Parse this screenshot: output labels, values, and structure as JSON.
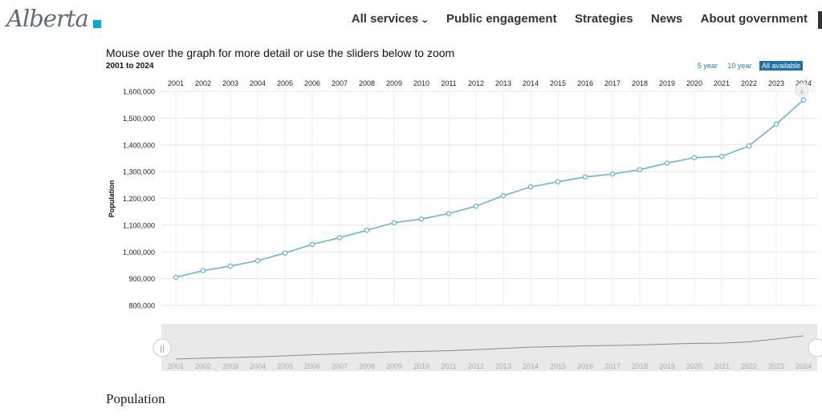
{
  "header": {
    "logo_text": "Alberta",
    "nav": [
      {
        "label": "All services",
        "has_dropdown": true
      },
      {
        "label": "Public engagement",
        "has_dropdown": false
      },
      {
        "label": "Strategies",
        "has_dropdown": false
      },
      {
        "label": "News",
        "has_dropdown": false
      },
      {
        "label": "About government",
        "has_dropdown": false
      }
    ]
  },
  "chart_header": {
    "instruction": "Mouse over the graph for more detail or use the sliders below to zoom",
    "range_text": "2001 to 2024",
    "range_buttons": [
      "5 year",
      "10 year",
      "All available"
    ],
    "active_range": "All available"
  },
  "chart_data": {
    "type": "line",
    "x": [
      "2001",
      "2002",
      "2003",
      "2004",
      "2005",
      "2006",
      "2007",
      "2008",
      "2009",
      "2010",
      "2011",
      "2012",
      "2013",
      "2014",
      "2015",
      "2016",
      "2017",
      "2018",
      "2019",
      "2020",
      "2021",
      "2022",
      "2023",
      "2024"
    ],
    "series": [
      {
        "values": [
          905000,
          930000,
          947000,
          967000,
          996000,
          1028000,
          1053000,
          1081000,
          1109000,
          1123000,
          1143000,
          1171000,
          1210000,
          1243000,
          1262000,
          1280000,
          1291000,
          1307000,
          1332000,
          1352000,
          1357000,
          1396000,
          1478000,
          1568000
        ],
        "color": "#6ab4d8"
      }
    ],
    "ylabel": "Population",
    "ylim": [
      800000,
      1600000
    ],
    "yticks": [
      "800,000",
      "900,000",
      "1,000,000",
      "1,100,000",
      "1,200,000",
      "1,300,000",
      "1,400,000",
      "1,500,000",
      "1,600,000"
    ],
    "x_axis_position": "top",
    "grid": true,
    "navigator": true
  },
  "section": {
    "heading": "Population"
  },
  "colors": {
    "line": "#6ab4d8",
    "accent": "#00aad2",
    "active_button": "#1f6fa8"
  }
}
